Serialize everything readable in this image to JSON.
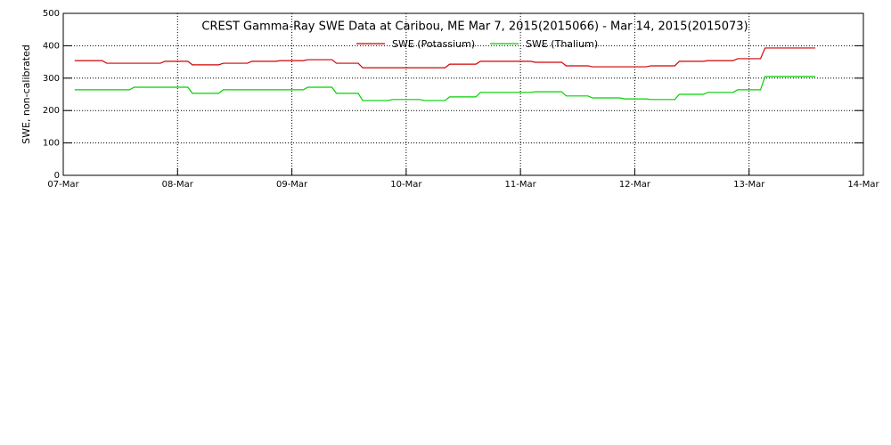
{
  "chart_data": {
    "type": "line",
    "title": "CREST Gamma-Ray SWE Data at Caribou, ME   Mar  7, 2015(2015066) - Mar 14, 2015(2015073)",
    "y_label": "SWE, non-calibrated",
    "xlim": [
      7,
      14
    ],
    "xticks": [
      {
        "value": 7,
        "label": "07-Mar"
      },
      {
        "value": 8,
        "label": "08-Mar"
      },
      {
        "value": 9,
        "label": "09-Mar"
      },
      {
        "value": 10,
        "label": "10-Mar"
      },
      {
        "value": 11,
        "label": "11-Mar"
      },
      {
        "value": 12,
        "label": "12-Mar"
      },
      {
        "value": 13,
        "label": "13-Mar"
      },
      {
        "value": 14,
        "label": "14-Mar"
      }
    ],
    "ylim": [
      0,
      500
    ],
    "yticks": [
      0,
      100,
      200,
      300,
      400,
      500
    ],
    "grid": true,
    "series": [
      {
        "name": "SWE (Potassium)",
        "color": "#d00000",
        "x": [
          7.1,
          7.34,
          7.38,
          7.85,
          7.89,
          8.09,
          8.13,
          8.36,
          8.4,
          8.61,
          8.65,
          8.86,
          8.9,
          9.1,
          9.14,
          9.35,
          9.39,
          9.58,
          9.62,
          10.34,
          10.38,
          10.61,
          10.65,
          11.09,
          11.13,
          11.36,
          11.4,
          11.59,
          11.63,
          12.1,
          12.14,
          12.35,
          12.39,
          12.6,
          12.64,
          12.86,
          12.9,
          13.1,
          13.14,
          13.58
        ],
        "values": [
          354,
          354,
          346,
          346,
          352,
          352,
          341,
          341,
          346,
          346,
          352,
          352,
          354,
          354,
          357,
          357,
          346,
          346,
          332,
          332,
          343,
          343,
          352,
          352,
          349,
          349,
          338,
          338,
          335,
          335,
          338,
          338,
          352,
          352,
          354,
          354,
          360,
          360,
          393,
          393
        ]
      },
      {
        "name": "SWE (Thalium)",
        "color": "#00d000",
        "x": [
          7.1,
          7.58,
          7.62,
          8.09,
          8.13,
          8.36,
          8.4,
          9.1,
          9.14,
          9.35,
          9.39,
          9.58,
          9.62,
          9.84,
          9.88,
          10.12,
          10.16,
          10.34,
          10.38,
          10.61,
          10.65,
          11.09,
          11.13,
          11.36,
          11.4,
          11.59,
          11.63,
          11.87,
          11.91,
          12.1,
          12.14,
          12.35,
          12.39,
          12.6,
          12.64,
          12.86,
          12.9,
          13.1,
          13.14,
          13.58
        ],
        "values": [
          264,
          264,
          272,
          272,
          253,
          253,
          264,
          264,
          272,
          272,
          253,
          253,
          231,
          231,
          234,
          234,
          231,
          231,
          242,
          242,
          256,
          256,
          258,
          258,
          245,
          245,
          239,
          239,
          236,
          236,
          234,
          234,
          250,
          250,
          256,
          256,
          264,
          264,
          305,
          305
        ]
      }
    ]
  }
}
